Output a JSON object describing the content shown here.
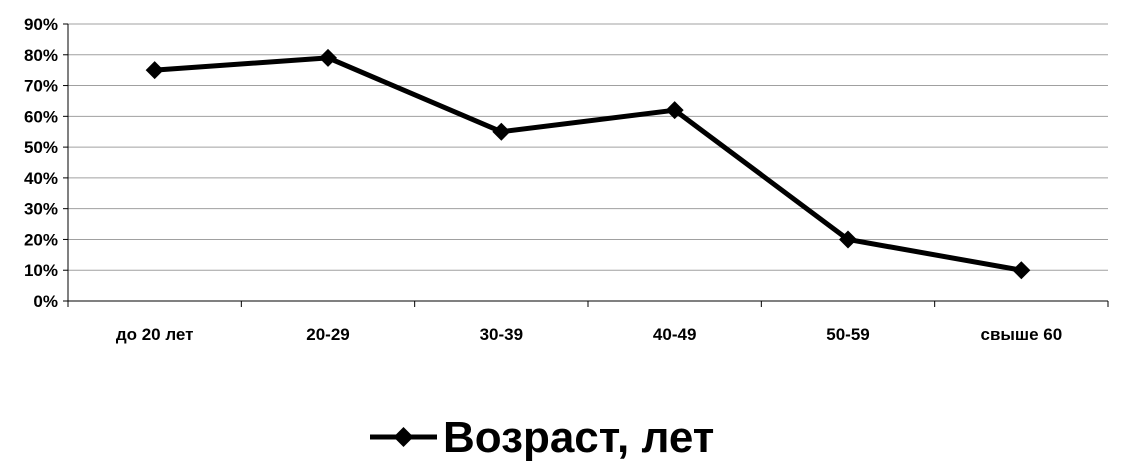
{
  "chart_data": {
    "type": "line",
    "title": "",
    "xlabel": "",
    "ylabel": "",
    "categories": [
      "до 20 лет",
      "20-29",
      "30-39",
      "40-49",
      "50-59",
      "свыше 60"
    ],
    "series": [
      {
        "name": "Возраст, лет",
        "values": [
          0.75,
          0.79,
          0.55,
          0.62,
          0.2,
          0.1
        ],
        "color": "#000000",
        "marker": "diamond"
      }
    ],
    "ylim": [
      0,
      0.9
    ],
    "y_ticks": [
      "0%",
      "10%",
      "20%",
      "30%",
      "40%",
      "50%",
      "60%",
      "70%",
      "80%",
      "90%"
    ],
    "y_format": "percent",
    "grid": true,
    "legend": "bottom"
  }
}
